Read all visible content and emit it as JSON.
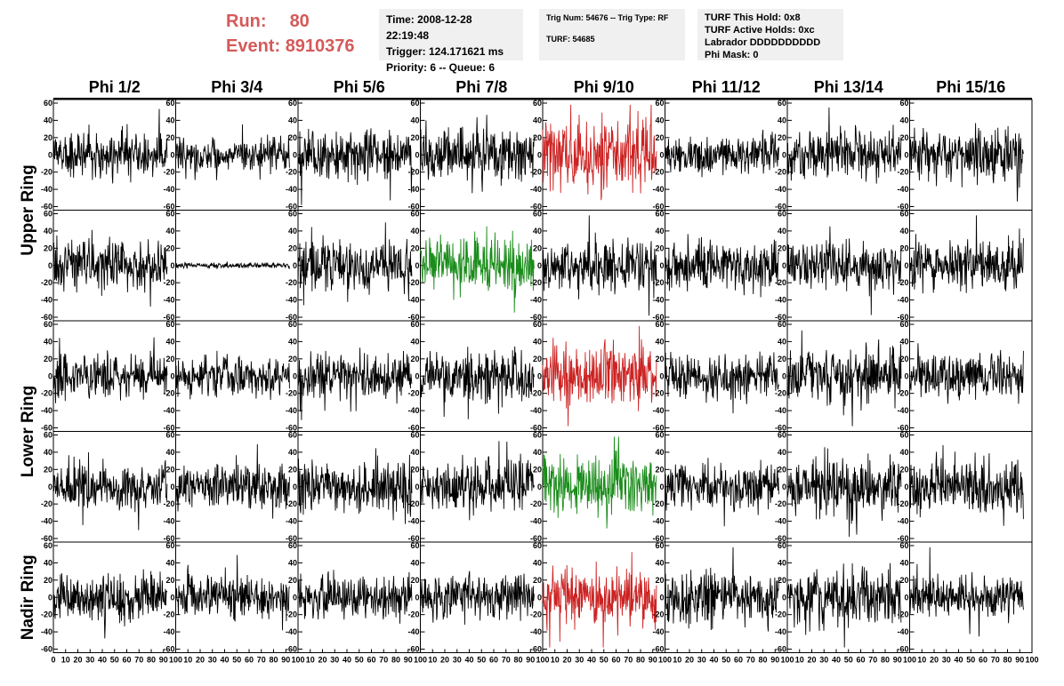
{
  "header": {
    "run_label": "Run:",
    "run_value": "80",
    "event_label": "Event:",
    "event_value": "8910376",
    "time_line": "Time: 2008-12-28 22:19:48",
    "trigger_line": "Trigger: 124.171621 ms",
    "priority_line": "Priority: 6 -- Queue: 6",
    "trig_line": "Trig Num: 54676 -- Trig Type: RF",
    "turf_line": "TURF: 54685",
    "turf_hold_line": "TURF This Hold: 0x8",
    "turf_active_line": "TURF Active Holds: 0xc",
    "labrador_line": "Labrador DDDDDDDDDD",
    "phi_mask_line": "Phi Mask: 0"
  },
  "colors": {
    "trace_default": "#000000",
    "trace_red": "#cc2222",
    "trace_green": "#1a8c1a"
  },
  "chart_data": {
    "type": "line",
    "columns": [
      "Phi 1/2",
      "Phi 3/4",
      "Phi 5/6",
      "Phi 7/8",
      "Phi 9/10",
      "Phi 11/12",
      "Phi 13/14",
      "Phi 15/16"
    ],
    "rings": [
      "Upper Ring",
      "Lower Ring",
      "Nadir Ring"
    ],
    "ring_row_spans": [
      [
        0,
        1
      ],
      [
        2,
        3
      ],
      [
        4,
        4
      ]
    ],
    "rows": 5,
    "ylim": [
      -60,
      60
    ],
    "yticks": [
      -60,
      -40,
      -20,
      0,
      20,
      40,
      60
    ],
    "xlim": [
      0,
      100
    ],
    "xticks": [
      0,
      10,
      20,
      30,
      40,
      50,
      60,
      70,
      80,
      90,
      100
    ],
    "samples_per_trace": 260,
    "trace_x_range": [
      0,
      93
    ],
    "panels": [
      [
        {
          "amp": 13,
          "color": "black"
        },
        {
          "amp": 9,
          "color": "black"
        },
        {
          "amp": 14,
          "color": "black"
        },
        {
          "amp": 14,
          "color": "black"
        },
        {
          "amp": 20,
          "color": "red"
        },
        {
          "amp": 11,
          "color": "black"
        },
        {
          "amp": 14,
          "color": "black"
        },
        {
          "amp": 16,
          "color": "black"
        }
      ],
      [
        {
          "amp": 13,
          "color": "black"
        },
        {
          "amp": 1.5,
          "color": "black"
        },
        {
          "amp": 15,
          "color": "black"
        },
        {
          "amp": 15,
          "color": "green"
        },
        {
          "amp": 15,
          "color": "black"
        },
        {
          "amp": 13,
          "color": "black"
        },
        {
          "amp": 14,
          "color": "black"
        },
        {
          "amp": 14,
          "color": "black"
        }
      ],
      [
        {
          "amp": 12,
          "color": "black"
        },
        {
          "amp": 11,
          "color": "black"
        },
        {
          "amp": 13,
          "color": "black"
        },
        {
          "amp": 14,
          "color": "black"
        },
        {
          "amp": 17,
          "color": "red"
        },
        {
          "amp": 12,
          "color": "black"
        },
        {
          "amp": 15,
          "color": "black"
        },
        {
          "amp": 12,
          "color": "black"
        }
      ],
      [
        {
          "amp": 13,
          "color": "black"
        },
        {
          "amp": 13,
          "color": "black"
        },
        {
          "amp": 15,
          "color": "black"
        },
        {
          "amp": 14,
          "color": "black"
        },
        {
          "amp": 17,
          "color": "green"
        },
        {
          "amp": 14,
          "color": "black"
        },
        {
          "amp": 16,
          "color": "black"
        },
        {
          "amp": 15,
          "color": "black"
        }
      ],
      [
        {
          "amp": 14,
          "color": "black"
        },
        {
          "amp": 12,
          "color": "black"
        },
        {
          "amp": 12,
          "color": "black"
        },
        {
          "amp": 13,
          "color": "black"
        },
        {
          "amp": 15,
          "color": "red"
        },
        {
          "amp": 15,
          "color": "black"
        },
        {
          "amp": 16,
          "color": "black"
        },
        {
          "amp": 12,
          "color": "black"
        }
      ]
    ]
  }
}
